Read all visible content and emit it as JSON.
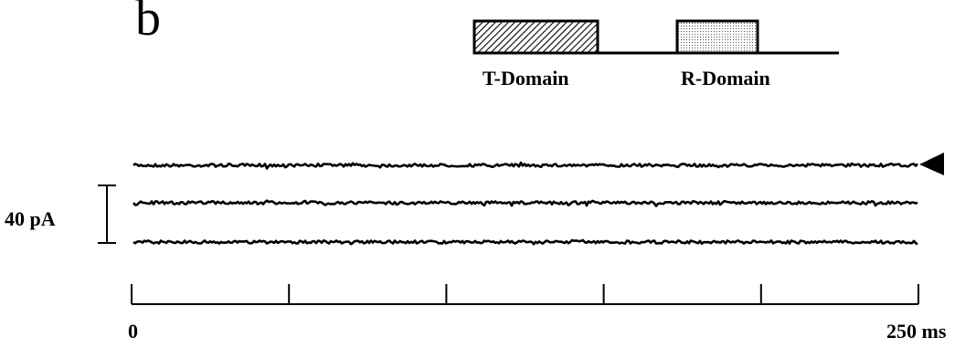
{
  "panel": {
    "letter": "b"
  },
  "construct": {
    "domains": [
      {
        "label": "T-Domain",
        "pattern": "hatched"
      },
      {
        "label": "R-Domain",
        "pattern": "dotted"
      }
    ]
  },
  "traces": {
    "count": 3,
    "marker": "arrow-left-icon",
    "marker_on_trace": 1
  },
  "scale_bar": {
    "label": "40 pA"
  },
  "time_axis": {
    "start_label": "0",
    "end_label": "250 ms",
    "range_ms": [
      0,
      250
    ],
    "tick_interval_ms": 50
  }
}
